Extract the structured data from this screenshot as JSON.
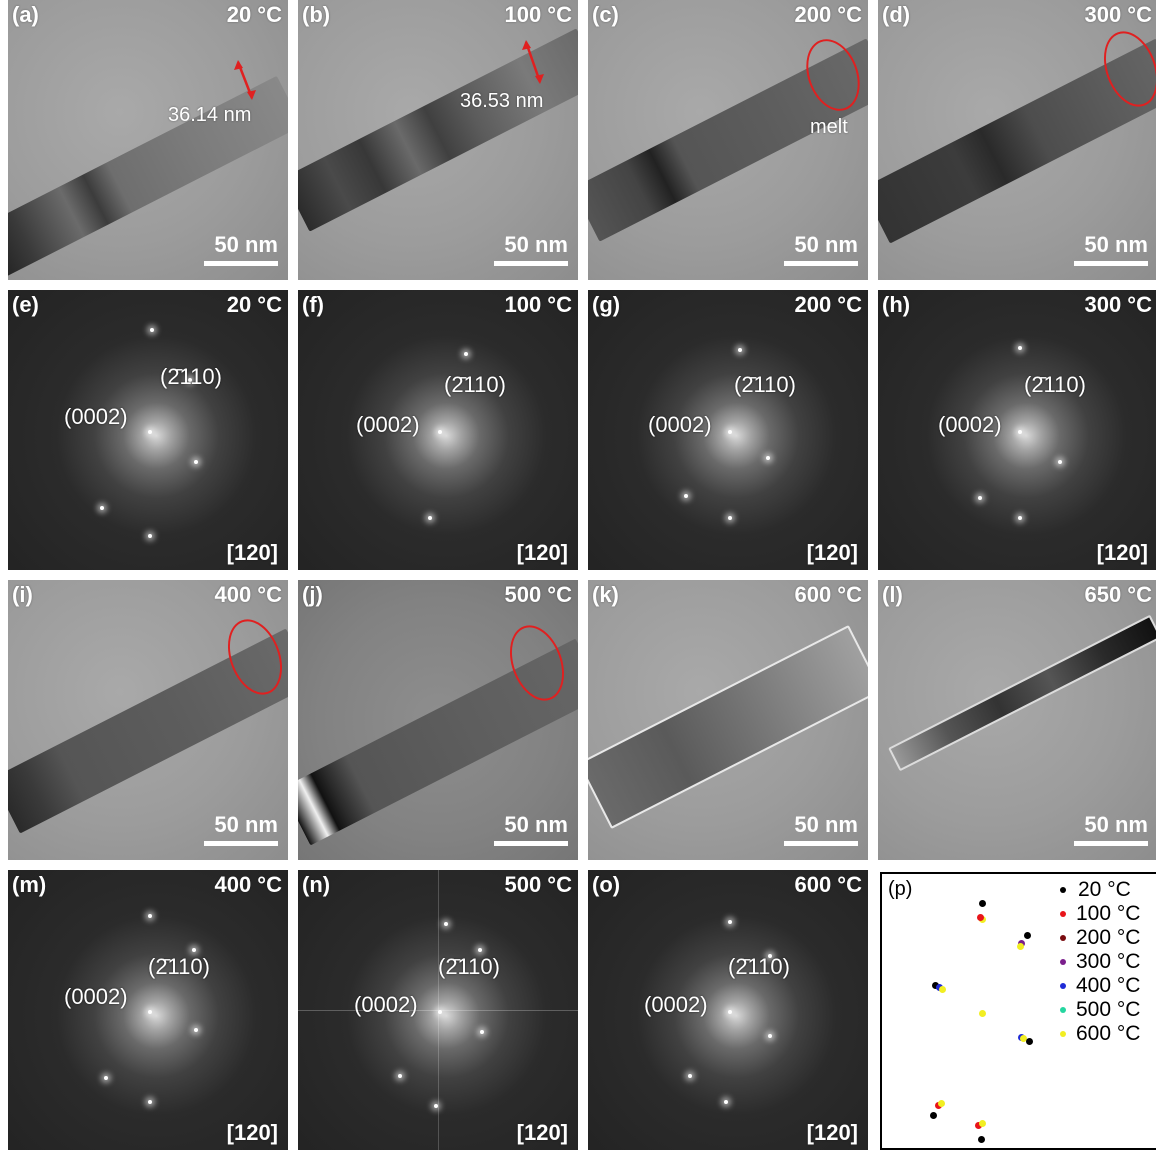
{
  "figure": {
    "scale_text": "50 nm",
    "zone_axis": "[120]",
    "plane_a": "(0002)",
    "plane_b": "(2̄110)",
    "melt_label": "melt",
    "width_a": "36.14 nm",
    "width_b": "36.53 nm"
  },
  "panels": [
    {
      "id": "a",
      "tag": "(a)",
      "temp": "20 °C",
      "kind": "tem"
    },
    {
      "id": "b",
      "tag": "(b)",
      "temp": "100 °C",
      "kind": "tem"
    },
    {
      "id": "c",
      "tag": "(c)",
      "temp": "200 °C",
      "kind": "tem"
    },
    {
      "id": "d",
      "tag": "(d)",
      "temp": "300 °C",
      "kind": "tem"
    },
    {
      "id": "e",
      "tag": "(e)",
      "temp": "20 °C",
      "kind": "fft"
    },
    {
      "id": "f",
      "tag": "(f)",
      "temp": "100 °C",
      "kind": "fft"
    },
    {
      "id": "g",
      "tag": "(g)",
      "temp": "200 °C",
      "kind": "fft"
    },
    {
      "id": "h",
      "tag": "(h)",
      "temp": "300 °C",
      "kind": "fft"
    },
    {
      "id": "i",
      "tag": "(i)",
      "temp": "400 °C",
      "kind": "tem"
    },
    {
      "id": "j",
      "tag": "(j)",
      "temp": "500 °C",
      "kind": "tem"
    },
    {
      "id": "k",
      "tag": "(k)",
      "temp": "600 °C",
      "kind": "tem"
    },
    {
      "id": "l",
      "tag": "(l)",
      "temp": "650 °C",
      "kind": "tem"
    },
    {
      "id": "m",
      "tag": "(m)",
      "temp": "400 °C",
      "kind": "fft"
    },
    {
      "id": "n",
      "tag": "(n)",
      "temp": "500 °C",
      "kind": "fft"
    },
    {
      "id": "o",
      "tag": "(o)",
      "temp": "600 °C",
      "kind": "fft"
    }
  ],
  "legend_panel": {
    "tag": "(p)",
    "entries": [
      {
        "label": "20 °C",
        "color": "#000000"
      },
      {
        "label": "100 °C",
        "color": "#e8141a"
      },
      {
        "label": "200 °C",
        "color": "#7a0c10"
      },
      {
        "label": "300 °C",
        "color": "#7b1f8c"
      },
      {
        "label": "400 °C",
        "color": "#1f2bd6"
      },
      {
        "label": "500 °C",
        "color": "#25d6a0"
      },
      {
        "label": "600 °C",
        "color": "#f2ee22"
      }
    ]
  }
}
